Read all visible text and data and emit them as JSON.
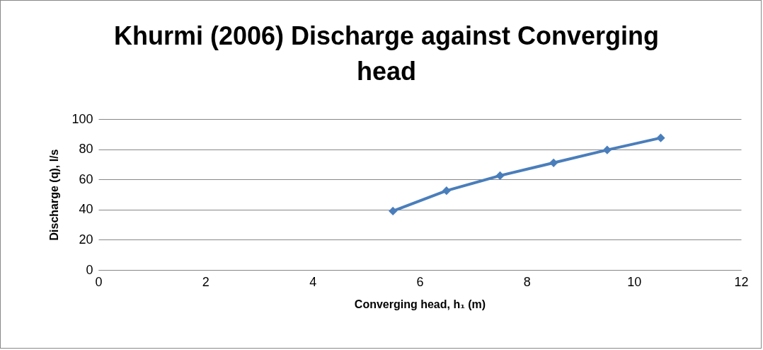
{
  "chart_data": {
    "type": "line",
    "title": "Khurmi (2006) Discharge against Converging head",
    "xlabel": "Converging head, h₁  (m)",
    "ylabel": "Discharge (q), l/s",
    "x": [
      5.5,
      6.5,
      7.5,
      8.5,
      9.5,
      10.5
    ],
    "series": [
      {
        "color": "#4a7ebb",
        "values": [
          39,
          52.5,
          62.5,
          71,
          79.5,
          87.5
        ]
      }
    ],
    "xlim": [
      0,
      12
    ],
    "xticks": [
      0,
      2,
      4,
      6,
      8,
      10,
      12
    ],
    "ylim": [
      0,
      100
    ],
    "yticks": [
      0,
      20,
      40,
      60,
      80,
      100
    ],
    "grid": "y",
    "marker": "diamond",
    "line_style": "solid"
  }
}
